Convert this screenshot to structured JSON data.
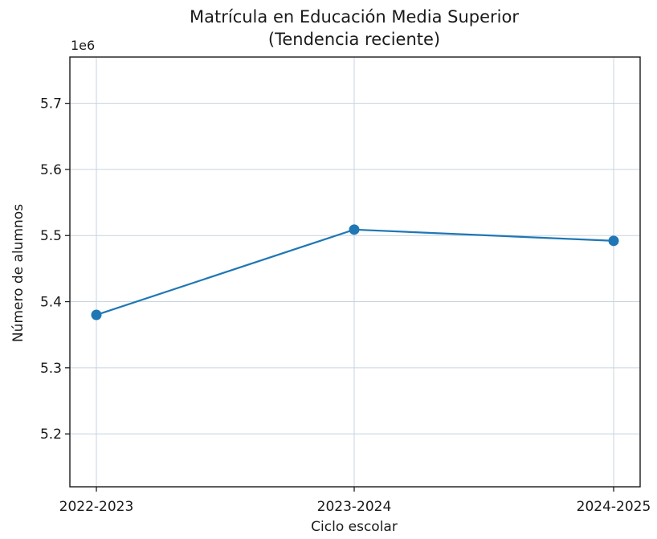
{
  "chart_data": {
    "type": "line",
    "title_line1": "Matrícula en Educación Media Superior",
    "title_line2": "(Tendencia reciente)",
    "xlabel": "Ciclo escolar",
    "ylabel": "Número de alumnos",
    "y_offset_label": "1e6",
    "categories": [
      "2022-2023",
      "2023-2024",
      "2024-2025"
    ],
    "series": [
      {
        "values": [
          5380000,
          5509000,
          5492000
        ],
        "color": "#1f77b4"
      }
    ],
    "ylim": [
      5120000,
      5770000
    ],
    "yticks": [
      5200000,
      5300000,
      5400000,
      5500000,
      5600000,
      5700000
    ],
    "ytick_labels": [
      "5.2",
      "5.3",
      "5.4",
      "5.5",
      "5.6",
      "5.7"
    ],
    "grid": true,
    "grid_color": "#c7d3e0",
    "legend": false
  }
}
